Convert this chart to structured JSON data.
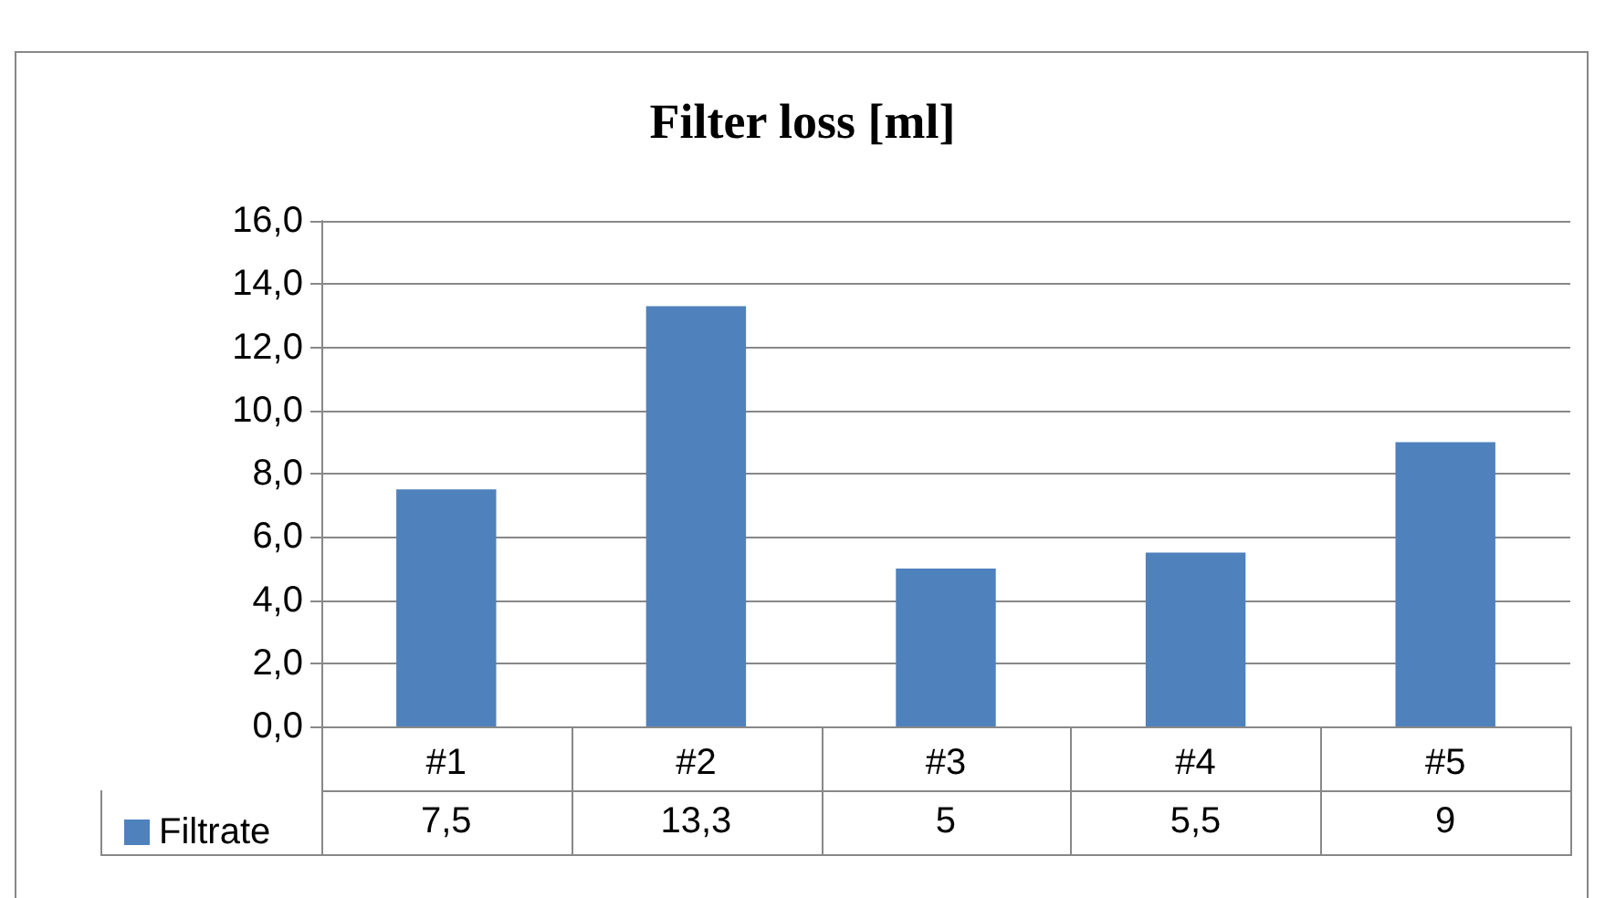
{
  "chart_data": {
    "type": "bar",
    "title": "Filter loss [ml]",
    "categories": [
      "#1",
      "#2",
      "#3",
      "#4",
      "#5"
    ],
    "series": [
      {
        "name": "Filtrate",
        "color": "#4f81bd",
        "values": [
          7.5,
          13.3,
          5,
          5.5,
          9
        ],
        "value_labels": [
          "7,5",
          "13,3",
          "5",
          "5,5",
          "9"
        ]
      }
    ],
    "ylim": [
      0,
      16
    ],
    "yticks": [
      {
        "value": 0,
        "label": "0,0"
      },
      {
        "value": 2,
        "label": "2,0"
      },
      {
        "value": 4,
        "label": "4,0"
      },
      {
        "value": 6,
        "label": "6,0"
      },
      {
        "value": 8,
        "label": "8,0"
      },
      {
        "value": 10,
        "label": "10,0"
      },
      {
        "value": 12,
        "label": "12,0"
      },
      {
        "value": 14,
        "label": "14,0"
      },
      {
        "value": 16,
        "label": "16,0"
      }
    ],
    "grid": "y",
    "legend": "bottom left"
  }
}
